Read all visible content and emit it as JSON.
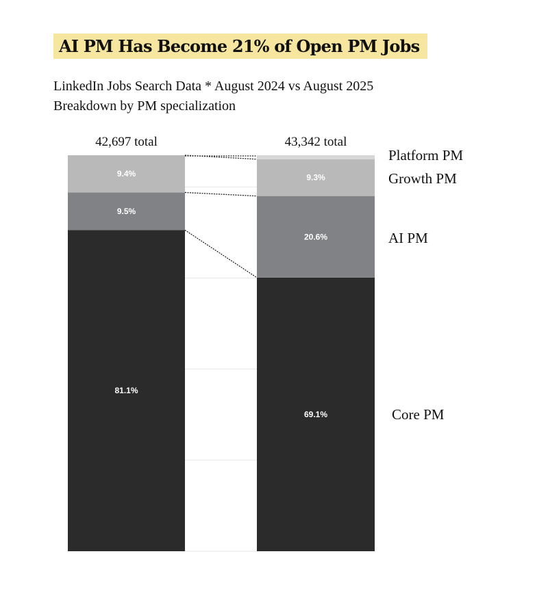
{
  "chart_data": {
    "type": "bar",
    "stacked": true,
    "normalized_percent": true,
    "title": "AI PM Has Become 21% of Open PM Jobs",
    "subtitle_lines": [
      "LinkedIn Jobs Search Data * August 2024 vs August 2025",
      "Breakdown by PM specialization"
    ],
    "categories": [
      "August 2024",
      "August 2025"
    ],
    "totals": [
      "42,697 total",
      "43,342 total"
    ],
    "series": [
      {
        "name": "Core PM",
        "values": [
          81.1,
          69.1
        ],
        "labels": [
          "81.1%",
          "69.1%"
        ],
        "color": "#2b2b2b",
        "label_color": "#ffffff"
      },
      {
        "name": "AI PM",
        "values": [
          9.5,
          20.6
        ],
        "labels": [
          "9.5%",
          "20.6%"
        ],
        "color": "#818285",
        "label_color": "#ffffff"
      },
      {
        "name": "Growth PM",
        "values": [
          9.4,
          9.3
        ],
        "labels": [
          "9.4%",
          "9.3%"
        ],
        "color": "#b9b9b9",
        "label_color": "#ffffff"
      },
      {
        "name": "Platform PM",
        "values": [
          1.4,
          1.4
        ],
        "labels": [
          "",
          ""
        ],
        "color": "#d7d7d7",
        "label_color": "#ffffff"
      }
    ],
    "ylim": [
      0,
      100
    ],
    "grid": true,
    "legend": "right, aligned to segments"
  }
}
